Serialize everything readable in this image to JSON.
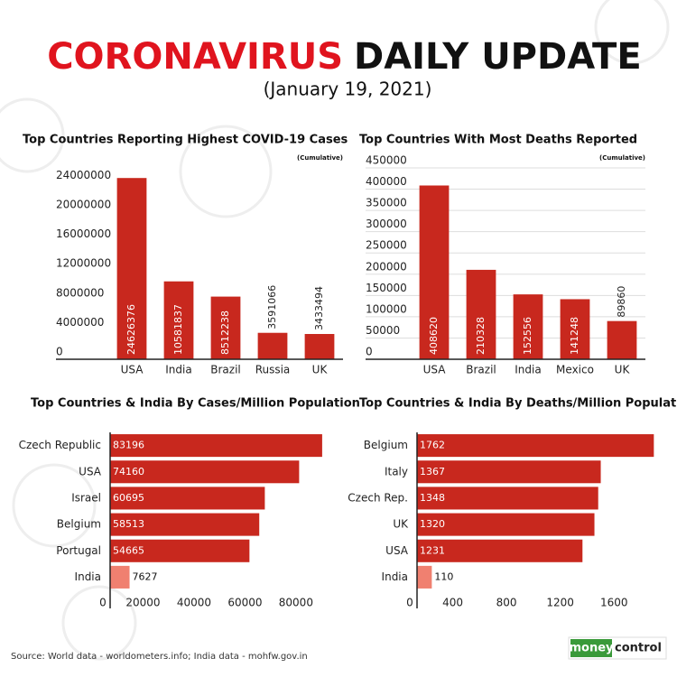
{
  "header": {
    "title_red": "CORONAVIRUS",
    "title_black": "DAILY UPDATE",
    "date": "(January 19, 2021)"
  },
  "chart_data": [
    {
      "type": "bar",
      "title": "Top Countries Reporting Highest COVID-19 Cases",
      "subtitle": "(Cumulative)",
      "categories": [
        "USA",
        "India",
        "Brazil",
        "Russia",
        "UK"
      ],
      "values": [
        24626376,
        10581837,
        8512238,
        3591066,
        3433494
      ],
      "color": "#c8281e",
      "ylim": [
        0,
        26000000
      ],
      "yticks": [
        0,
        4000000,
        8000000,
        12000000,
        16000000,
        20000000,
        24000000
      ],
      "grid": false
    },
    {
      "type": "bar",
      "title": "Top Countries With Most Deaths Reported",
      "subtitle": "(Cumulative)",
      "categories": [
        "USA",
        "Brazil",
        "India",
        "Mexico",
        "UK"
      ],
      "values": [
        408620,
        210328,
        152556,
        141248,
        89860
      ],
      "color": "#c8281e",
      "ylim": [
        0,
        450000
      ],
      "yticks": [
        0,
        50000,
        100000,
        150000,
        200000,
        250000,
        300000,
        350000,
        400000,
        450000
      ],
      "grid": true
    },
    {
      "type": "barh",
      "title": "Top Countries & India By Cases/Million Population",
      "categories": [
        "Czech Republic",
        "USA",
        "Israel",
        "Belgium",
        "Portugal",
        "India"
      ],
      "values": [
        83196,
        74160,
        60695,
        58513,
        54665,
        7627
      ],
      "colors": [
        "#c8281e",
        "#c8281e",
        "#c8281e",
        "#c8281e",
        "#c8281e",
        "#f08070"
      ],
      "xlim": [
        0,
        85000
      ],
      "xticks": [
        0,
        20000,
        40000,
        60000,
        80000
      ],
      "grid": false
    },
    {
      "type": "barh",
      "title": "Top Countries & India By Deaths/Million Population",
      "categories": [
        "Belgium",
        "Italy",
        "Czech Rep.",
        "UK",
        "USA",
        "India"
      ],
      "values": [
        1762,
        1367,
        1348,
        1320,
        1231,
        110
      ],
      "colors": [
        "#c8281e",
        "#c8281e",
        "#c8281e",
        "#c8281e",
        "#c8281e",
        "#f08070"
      ],
      "xlim": [
        0,
        1800
      ],
      "xticks": [
        0,
        400,
        800,
        1200,
        1600
      ],
      "grid": false
    }
  ],
  "footer": {
    "source": "Source: World data - worldometers.info; India data - mohfw.gov.in",
    "logo_a": "money",
    "logo_b": "control"
  }
}
